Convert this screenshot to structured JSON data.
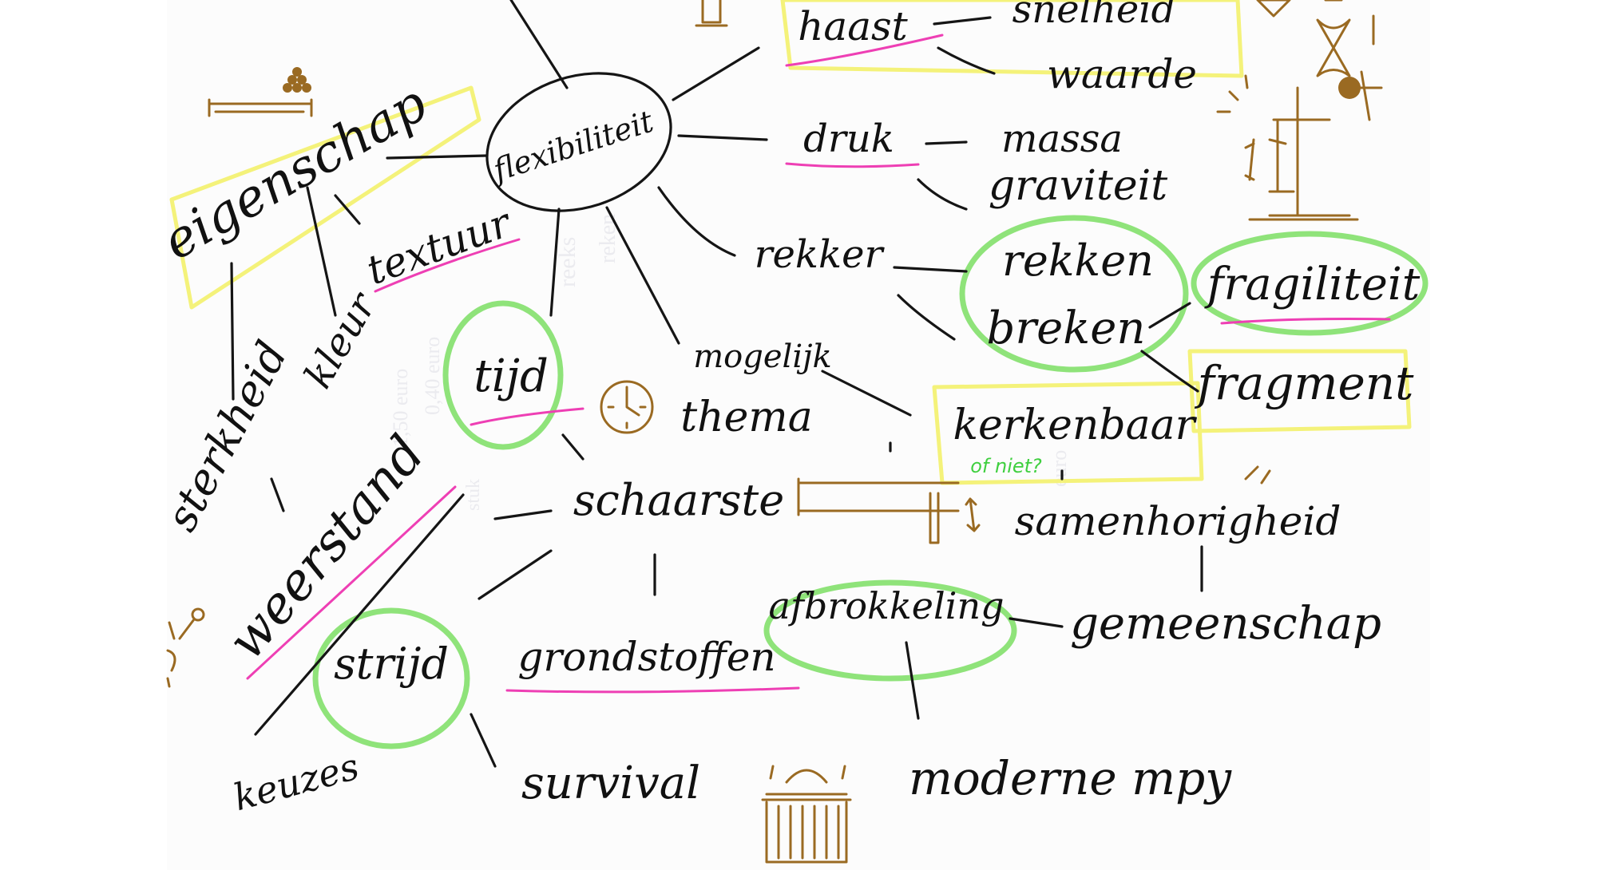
{
  "colors": {
    "ink": "#111111",
    "brown": "#9a6a22",
    "green": "#8fe37a",
    "yellow": "#f4f27a",
    "pink": "#ee3fb4",
    "note_green": "#3fcf3f",
    "paper": "#fcfcfc"
  },
  "ghost_text": [
    "reeks",
    "reken",
    "euro",
    "0,40 euro",
    "1,50 euro",
    "stuk"
  ],
  "words": {
    "flexibiliteit": "flexibiliteit",
    "eigenschap": "eigenschap",
    "textuur": "textuur",
    "haast": "haast",
    "snelheid": "snelheid",
    "waarde": "waarde",
    "druk": "druk",
    "massa": "massa",
    "graviteit": "graviteit",
    "rekker": "rekker",
    "rekken": "rekken",
    "breken": "breken",
    "fragiliteit": "fragiliteit",
    "fragment": "fragment",
    "kerkenbaar": "kerkenbaar",
    "of_niet": "of niet?",
    "tijd": "tijd",
    "mogelijk_thema": [
      "mogelijk",
      "thema"
    ],
    "sterkheid": "sterkheid",
    "kleur": "kleur",
    "weerstand": "weerstand",
    "schaarste": "schaarste",
    "samenhorigheid": "samenhorigheid",
    "afbrokkeling": "afbrokkeling",
    "gemeenschap": "gemeenschap",
    "strijd": "strijd",
    "grondstoffen": "grondstoffen",
    "keuzes": "keuzes",
    "survival": "survival",
    "moderne_mpy": "moderne mpy"
  },
  "doodles": [
    "balance-scale-icon",
    "hourglass-icon",
    "scale-icon",
    "clock-icon",
    "seesaw-icon",
    "fragments-icon",
    "museum-icon",
    "figure-icon",
    "key-icon"
  ]
}
